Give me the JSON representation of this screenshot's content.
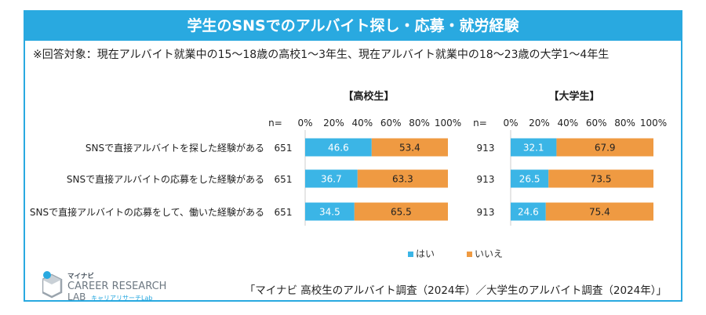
{
  "title": "学生のSNSでのアルバイト探し・応募・就労経験",
  "subject": "※回答対象：現在アルバイト就業中の15～18歳の高校1～3年生、現在アルバイト就業中の18～23歳の大学1～4年生",
  "source": "「マイナビ 高校生のアルバイト調査（2024年）／大学生のアルバイト調査（2024年）」",
  "logo": {
    "top": "マイナビ",
    "line1": "CAREER RESEARCH",
    "line2": "LAB",
    "sub": "キャリアリサーチLab"
  },
  "colors": {
    "frame": "#29a9e0",
    "yes": "#3bb5e6",
    "no": "#ef9a42"
  },
  "chart_data": {
    "type": "bar",
    "stacked": true,
    "orientation": "horizontal",
    "n_label": "n=",
    "categories": [
      "SNSで直接アルバイトを探した経験がある",
      "SNSで直接アルバイトの応募をした経験がある",
      "SNSで直接アルバイトの応募をして、働いた経験がある"
    ],
    "xticks": [
      "0%",
      "20%",
      "40%",
      "60%",
      "80%",
      "100%"
    ],
    "xlim": [
      0,
      100
    ],
    "legend": [
      "はい",
      "いいえ"
    ],
    "panels": [
      {
        "title": "【高校生】",
        "n": [
          "651",
          "651",
          "651"
        ],
        "series": [
          {
            "name": "はい",
            "values": [
              46.6,
              36.7,
              34.5
            ]
          },
          {
            "name": "いいえ",
            "values": [
              53.4,
              63.3,
              65.5
            ]
          }
        ]
      },
      {
        "title": "【大学生】",
        "n": [
          "913",
          "913",
          "913"
        ],
        "series": [
          {
            "name": "はい",
            "values": [
              32.1,
              26.5,
              24.6
            ]
          },
          {
            "name": "いいえ",
            "values": [
              67.9,
              73.5,
              75.4
            ]
          }
        ]
      }
    ]
  }
}
